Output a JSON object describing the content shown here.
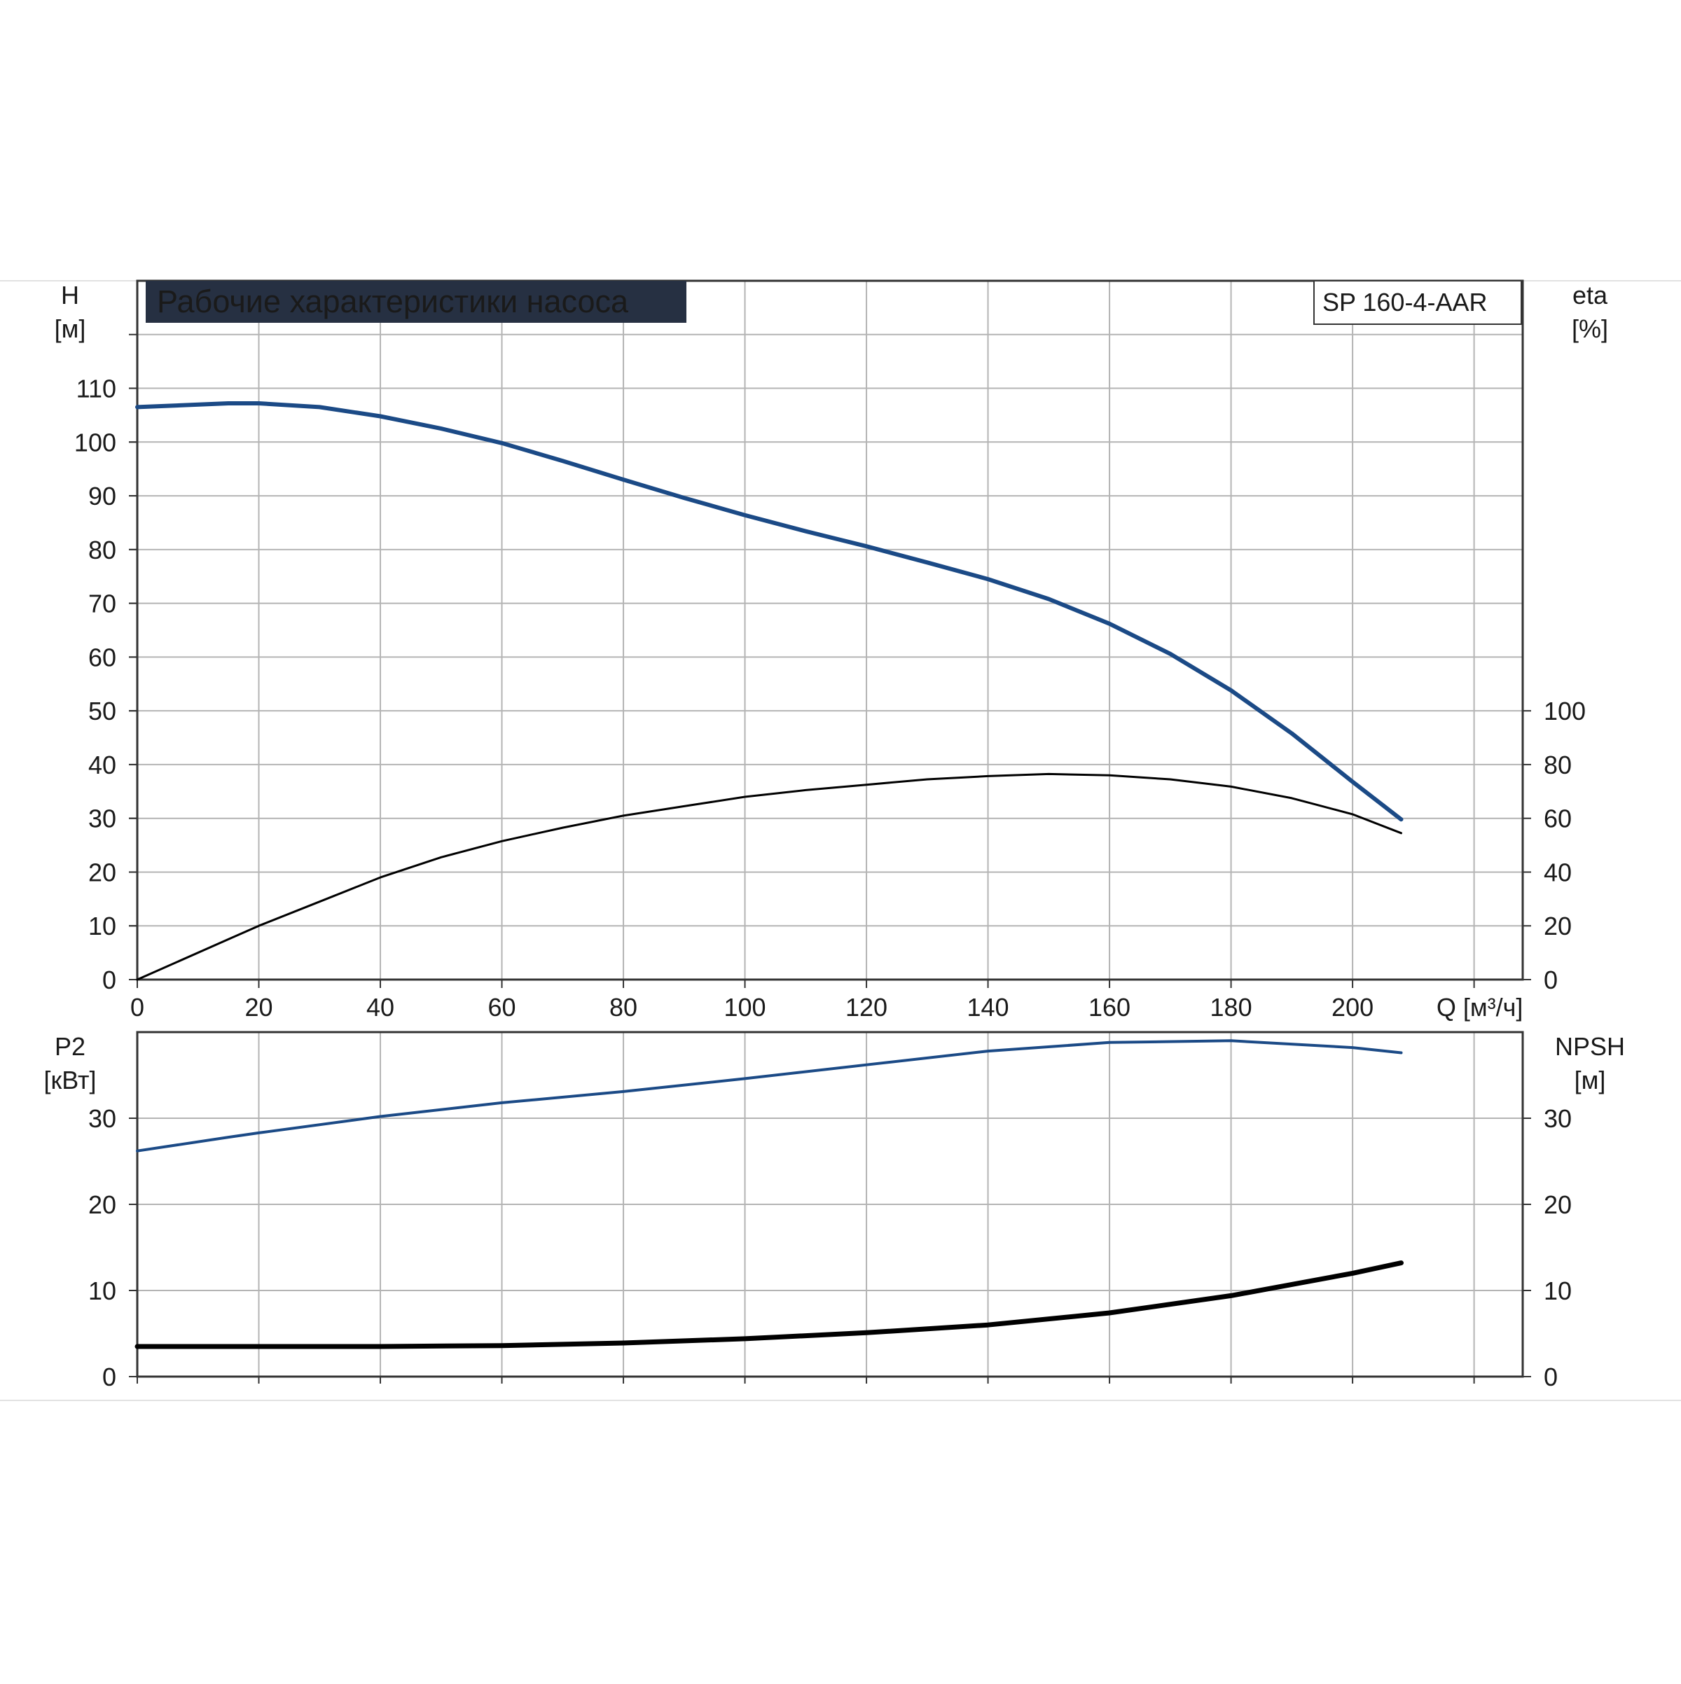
{
  "title": "Рабочие характеристики насоса",
  "model": "SP 160-4-AAR",
  "colors": {
    "title_bg": "#263042",
    "title_fg": "#ffffff",
    "grid": "#b4b4b4",
    "frame": "#333333",
    "blue_curve": "#1b4a86",
    "black_curve": "#000000"
  },
  "chart_data": [
    {
      "type": "line",
      "panel": "head-efficiency",
      "x_label": "Q [м³/ч]",
      "x_ticks": [
        "0",
        "20",
        "40",
        "60",
        "80",
        "100",
        "120",
        "140",
        "160",
        "180",
        "200"
      ],
      "xlim": [
        0,
        228
      ],
      "y_left_label": [
        "H",
        "[м]"
      ],
      "y_left_ticks": [
        "0",
        "10",
        "20",
        "30",
        "40",
        "50",
        "60",
        "70",
        "80",
        "90",
        "100",
        "110"
      ],
      "ylim_left": [
        0,
        130
      ],
      "y_right_label": [
        "eta",
        "[%]"
      ],
      "y_right_ticks": [
        "0",
        "20",
        "40",
        "60",
        "80",
        "100"
      ],
      "ylim_right": [
        0,
        260
      ],
      "grid": true,
      "series": [
        {
          "axis": "left",
          "color": "#1b4a86",
          "points": [
            [
              0,
              106.5
            ],
            [
              15,
              107.2
            ],
            [
              20,
              107.2
            ],
            [
              30,
              106.5
            ],
            [
              40,
              104.8
            ],
            [
              50,
              102.5
            ],
            [
              60,
              99.8
            ],
            [
              70,
              96.5
            ],
            [
              80,
              93
            ],
            [
              90,
              89.6
            ],
            [
              100,
              86.4
            ],
            [
              110,
              83.4
            ],
            [
              120,
              80.6
            ],
            [
              130,
              77.6
            ],
            [
              140,
              74.5
            ],
            [
              150,
              70.8
            ],
            [
              160,
              66.2
            ],
            [
              170,
              60.6
            ],
            [
              180,
              53.8
            ],
            [
              190,
              45.8
            ],
            [
              200,
              36.8
            ],
            [
              208,
              29.8
            ]
          ]
        },
        {
          "axis": "right",
          "color": "#000000",
          "points": [
            [
              0,
              0
            ],
            [
              15,
              15
            ],
            [
              20,
              20
            ],
            [
              30,
              29
            ],
            [
              40,
              38
            ],
            [
              50,
              45.5
            ],
            [
              60,
              51.5
            ],
            [
              70,
              56.5
            ],
            [
              80,
              61
            ],
            [
              90,
              64.5
            ],
            [
              100,
              68
            ],
            [
              110,
              70.5
            ],
            [
              120,
              72.5
            ],
            [
              130,
              74.5
            ],
            [
              140,
              75.7
            ],
            [
              150,
              76.5
            ],
            [
              160,
              76
            ],
            [
              170,
              74.5
            ],
            [
              180,
              71.8
            ],
            [
              190,
              67.5
            ],
            [
              200,
              61.5
            ],
            [
              208,
              54.5
            ]
          ]
        }
      ]
    },
    {
      "type": "line",
      "panel": "power-npsh",
      "xlim": [
        0,
        228
      ],
      "y_left_label": [
        "P2",
        "[кВт]"
      ],
      "y_left_ticks": [
        "0",
        "10",
        "20",
        "30"
      ],
      "ylim_left": [
        0,
        40
      ],
      "y_right_label": [
        "NPSH",
        "[м]"
      ],
      "y_right_ticks": [
        "0",
        "10",
        "20",
        "30"
      ],
      "ylim_right": [
        0,
        40
      ],
      "grid": true,
      "series": [
        {
          "axis": "left",
          "color": "#1b4a86",
          "points": [
            [
              0,
              26.2
            ],
            [
              15,
              27.8
            ],
            [
              20,
              28.3
            ],
            [
              40,
              30.2
            ],
            [
              60,
              31.8
            ],
            [
              80,
              33.1
            ],
            [
              100,
              34.6
            ],
            [
              120,
              36.2
            ],
            [
              140,
              37.8
            ],
            [
              160,
              38.8
            ],
            [
              180,
              39
            ],
            [
              200,
              38.2
            ],
            [
              208,
              37.6
            ]
          ]
        },
        {
          "axis": "right",
          "color": "#000000",
          "points": [
            [
              0,
              3.5
            ],
            [
              15,
              3.5
            ],
            [
              40,
              3.5
            ],
            [
              60,
              3.6
            ],
            [
              80,
              3.9
            ],
            [
              100,
              4.4
            ],
            [
              120,
              5.1
            ],
            [
              140,
              6
            ],
            [
              160,
              7.4
            ],
            [
              180,
              9.4
            ],
            [
              200,
              12
            ],
            [
              208,
              13.2
            ]
          ]
        }
      ]
    }
  ]
}
